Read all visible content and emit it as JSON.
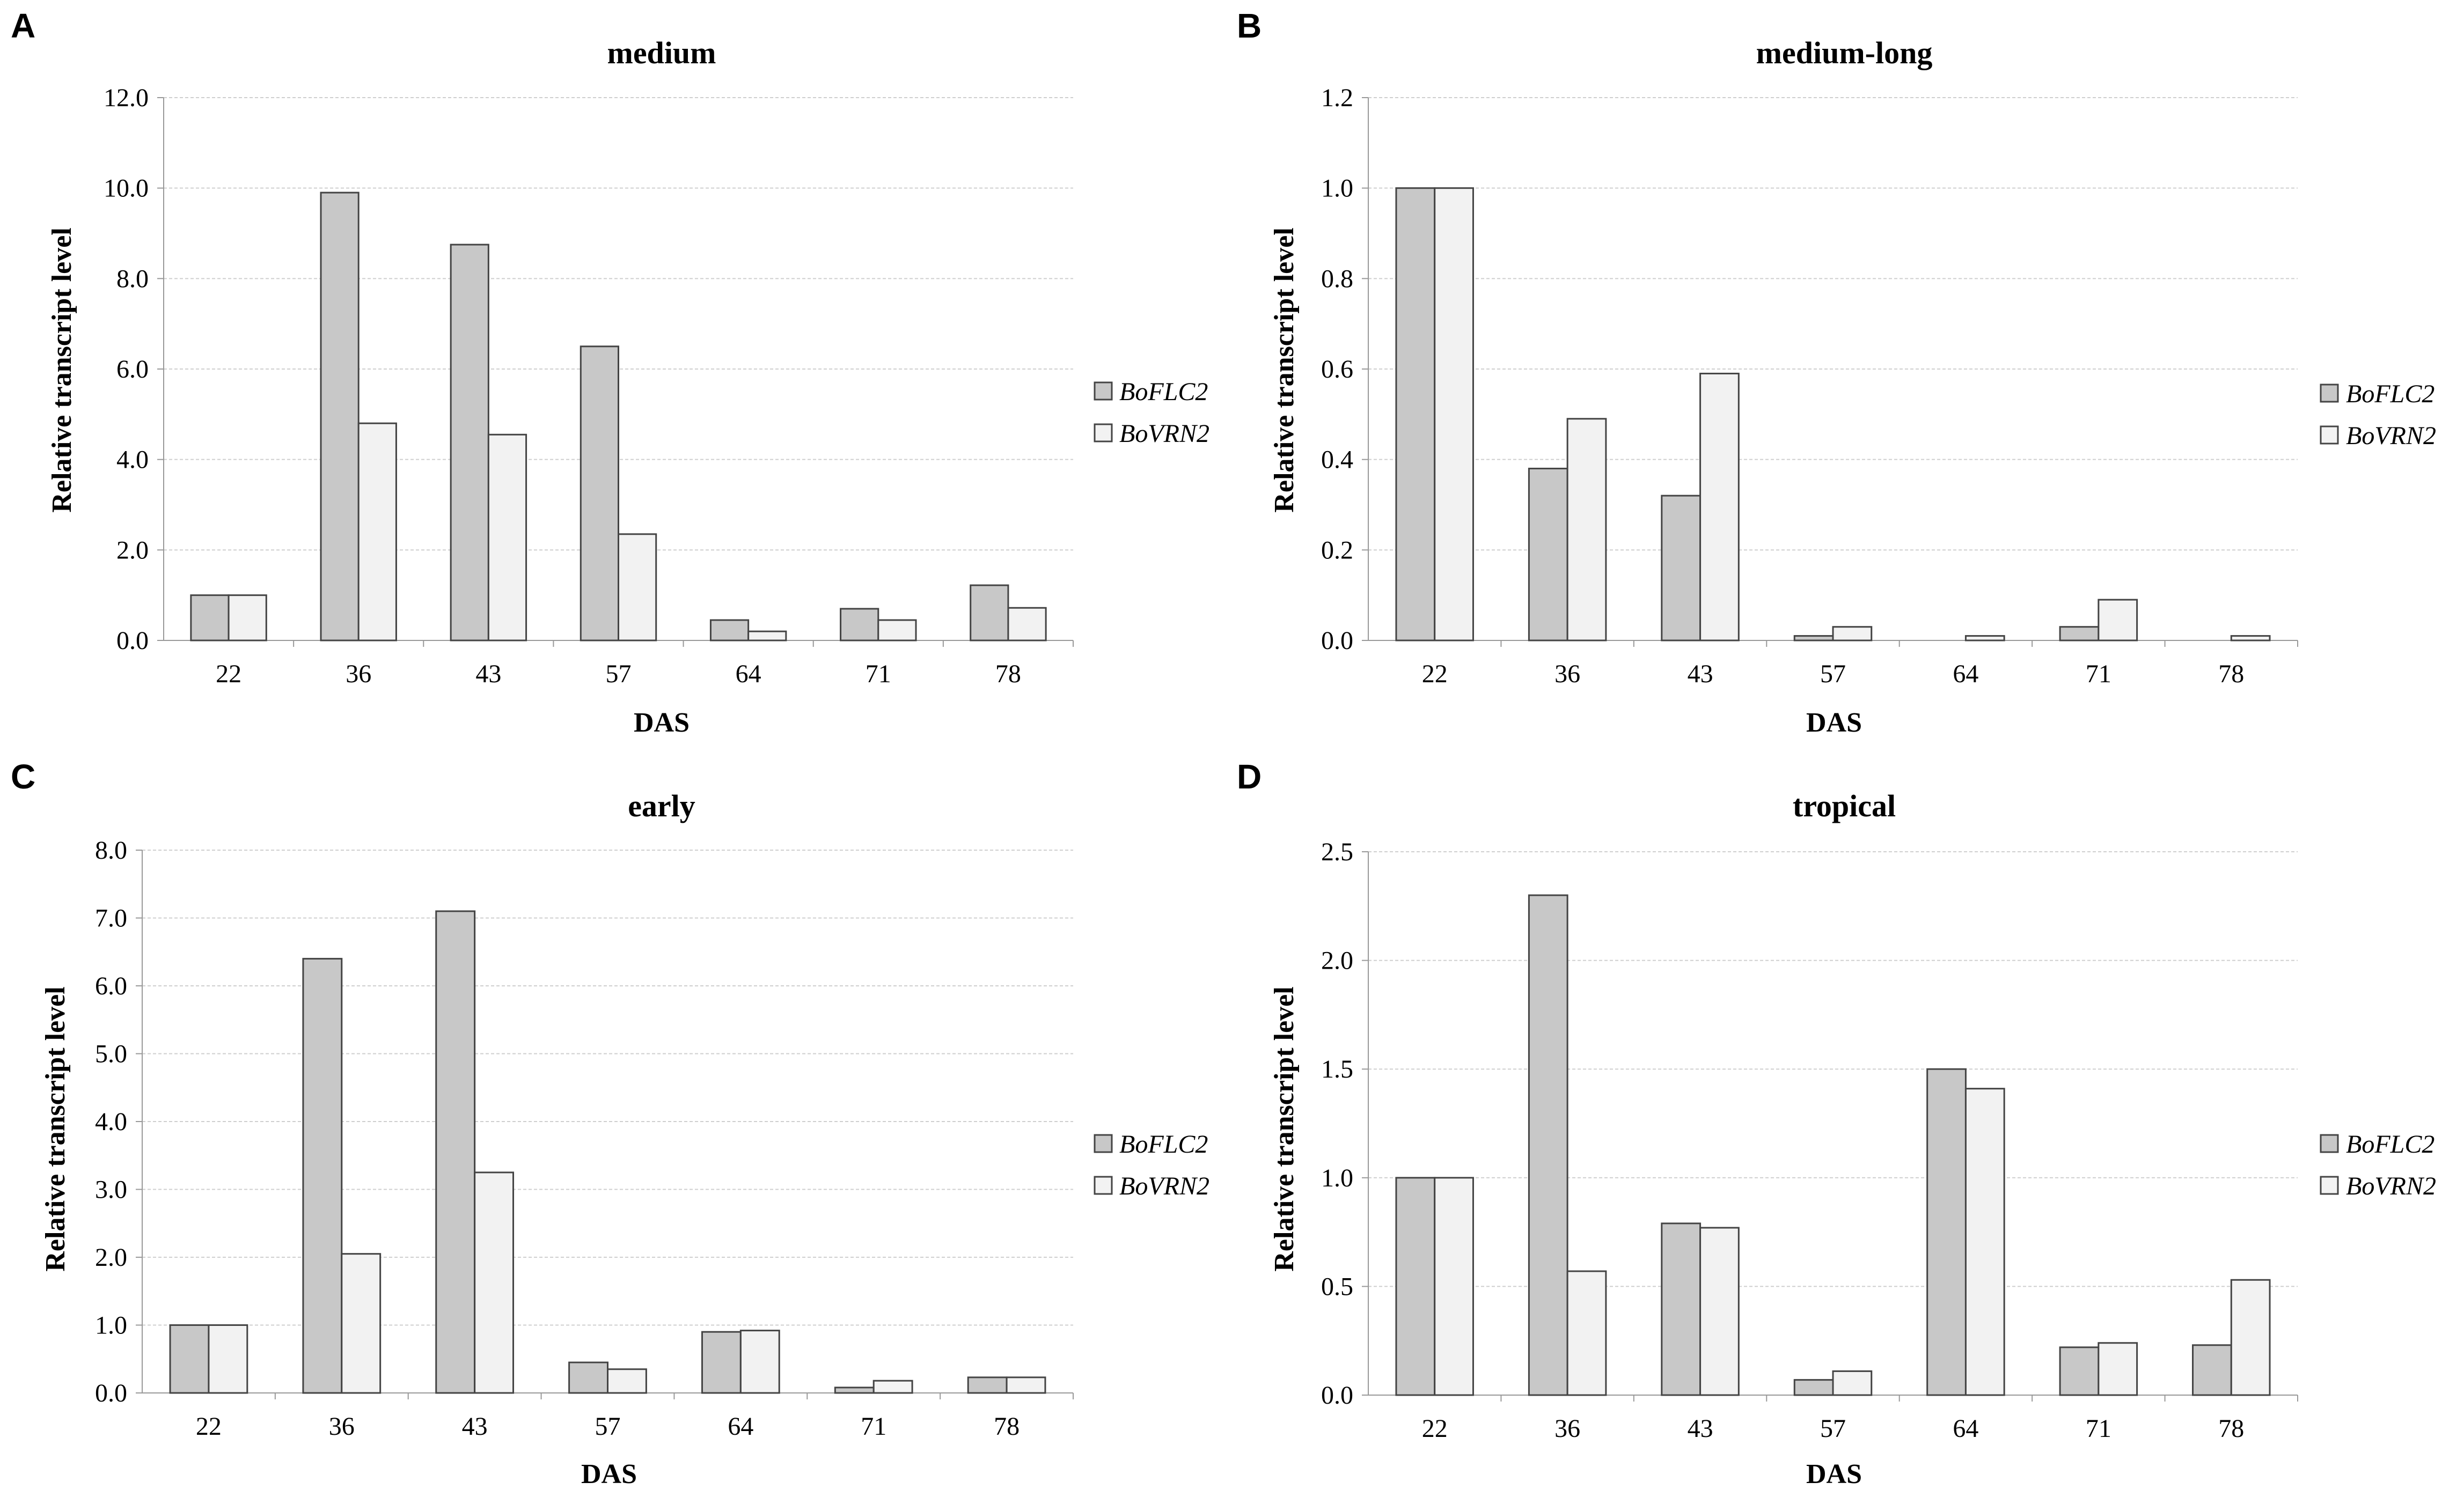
{
  "colors": {
    "flc2_fill": "#c8c8c8",
    "vrn2_fill": "#f2f2f2",
    "bar_stroke": "#444444",
    "grid": "#cfcfcf",
    "axis": "#999999"
  },
  "chart_data": [
    {
      "type": "bar",
      "panel": "A",
      "title": "medium",
      "xlabel": "DAS",
      "ylabel": "Relative transcript level",
      "categories": [
        "22",
        "36",
        "43",
        "57",
        "64",
        "71",
        "78"
      ],
      "ylim": [
        0,
        12
      ],
      "ystep": 2,
      "ytick_labels": [
        "0.0",
        "2.0",
        "4.0",
        "6.0",
        "8.0",
        "10.0",
        "12.0"
      ],
      "grid": true,
      "legend_position": "right",
      "series": [
        {
          "name": "BoFLC2",
          "values": [
            1.0,
            9.9,
            8.75,
            6.5,
            0.45,
            0.7,
            1.22
          ]
        },
        {
          "name": "BoVRN2",
          "values": [
            1.0,
            4.8,
            4.55,
            2.35,
            0.2,
            0.45,
            0.72
          ]
        }
      ]
    },
    {
      "type": "bar",
      "panel": "B",
      "title": "medium-long",
      "xlabel": "DAS",
      "ylabel": "Relative transcript level",
      "categories": [
        "22",
        "36",
        "43",
        "57",
        "64",
        "71",
        "78"
      ],
      "ylim": [
        0,
        1.2
      ],
      "ystep": 0.2,
      "ytick_labels": [
        "0.0",
        "0.2",
        "0.4",
        "0.6",
        "0.8",
        "1.0",
        "1.2"
      ],
      "grid": true,
      "legend_position": "right",
      "series": [
        {
          "name": "BoFLC2",
          "values": [
            1.0,
            0.38,
            0.32,
            0.01,
            0.0,
            0.03,
            0.0
          ]
        },
        {
          "name": "BoVRN2",
          "values": [
            1.0,
            0.49,
            0.59,
            0.03,
            0.01,
            0.09,
            0.01
          ]
        }
      ]
    },
    {
      "type": "bar",
      "panel": "C",
      "title": "early",
      "xlabel": "DAS",
      "ylabel": "Relative transcript level",
      "categories": [
        "22",
        "36",
        "43",
        "57",
        "64",
        "71",
        "78"
      ],
      "ylim": [
        0,
        8
      ],
      "ystep": 1,
      "ytick_labels": [
        "0.0",
        "1.0",
        "2.0",
        "3.0",
        "4.0",
        "5.0",
        "6.0",
        "7.0",
        "8.0"
      ],
      "grid": true,
      "legend_position": "right",
      "series": [
        {
          "name": "BoFLC2",
          "values": [
            1.0,
            6.4,
            7.1,
            0.45,
            0.9,
            0.08,
            0.23
          ]
        },
        {
          "name": "BoVRN2",
          "values": [
            1.0,
            2.05,
            3.25,
            0.35,
            0.92,
            0.18,
            0.23
          ]
        }
      ]
    },
    {
      "type": "bar",
      "panel": "D",
      "title": "tropical",
      "xlabel": "DAS",
      "ylabel": "Relative transcript level",
      "categories": [
        "22",
        "36",
        "43",
        "57",
        "64",
        "71",
        "78"
      ],
      "ylim": [
        0,
        2.5
      ],
      "ystep": 0.5,
      "ytick_labels": [
        "0.0",
        "0.5",
        "1.0",
        "1.5",
        "2.0",
        "2.5"
      ],
      "grid": true,
      "legend_position": "right",
      "series": [
        {
          "name": "BoFLC2",
          "values": [
            1.0,
            2.3,
            0.79,
            0.07,
            1.5,
            0.22,
            0.23
          ]
        },
        {
          "name": "BoVRN2",
          "values": [
            1.0,
            0.57,
            0.77,
            0.11,
            1.41,
            0.24,
            0.53
          ]
        }
      ]
    }
  ]
}
